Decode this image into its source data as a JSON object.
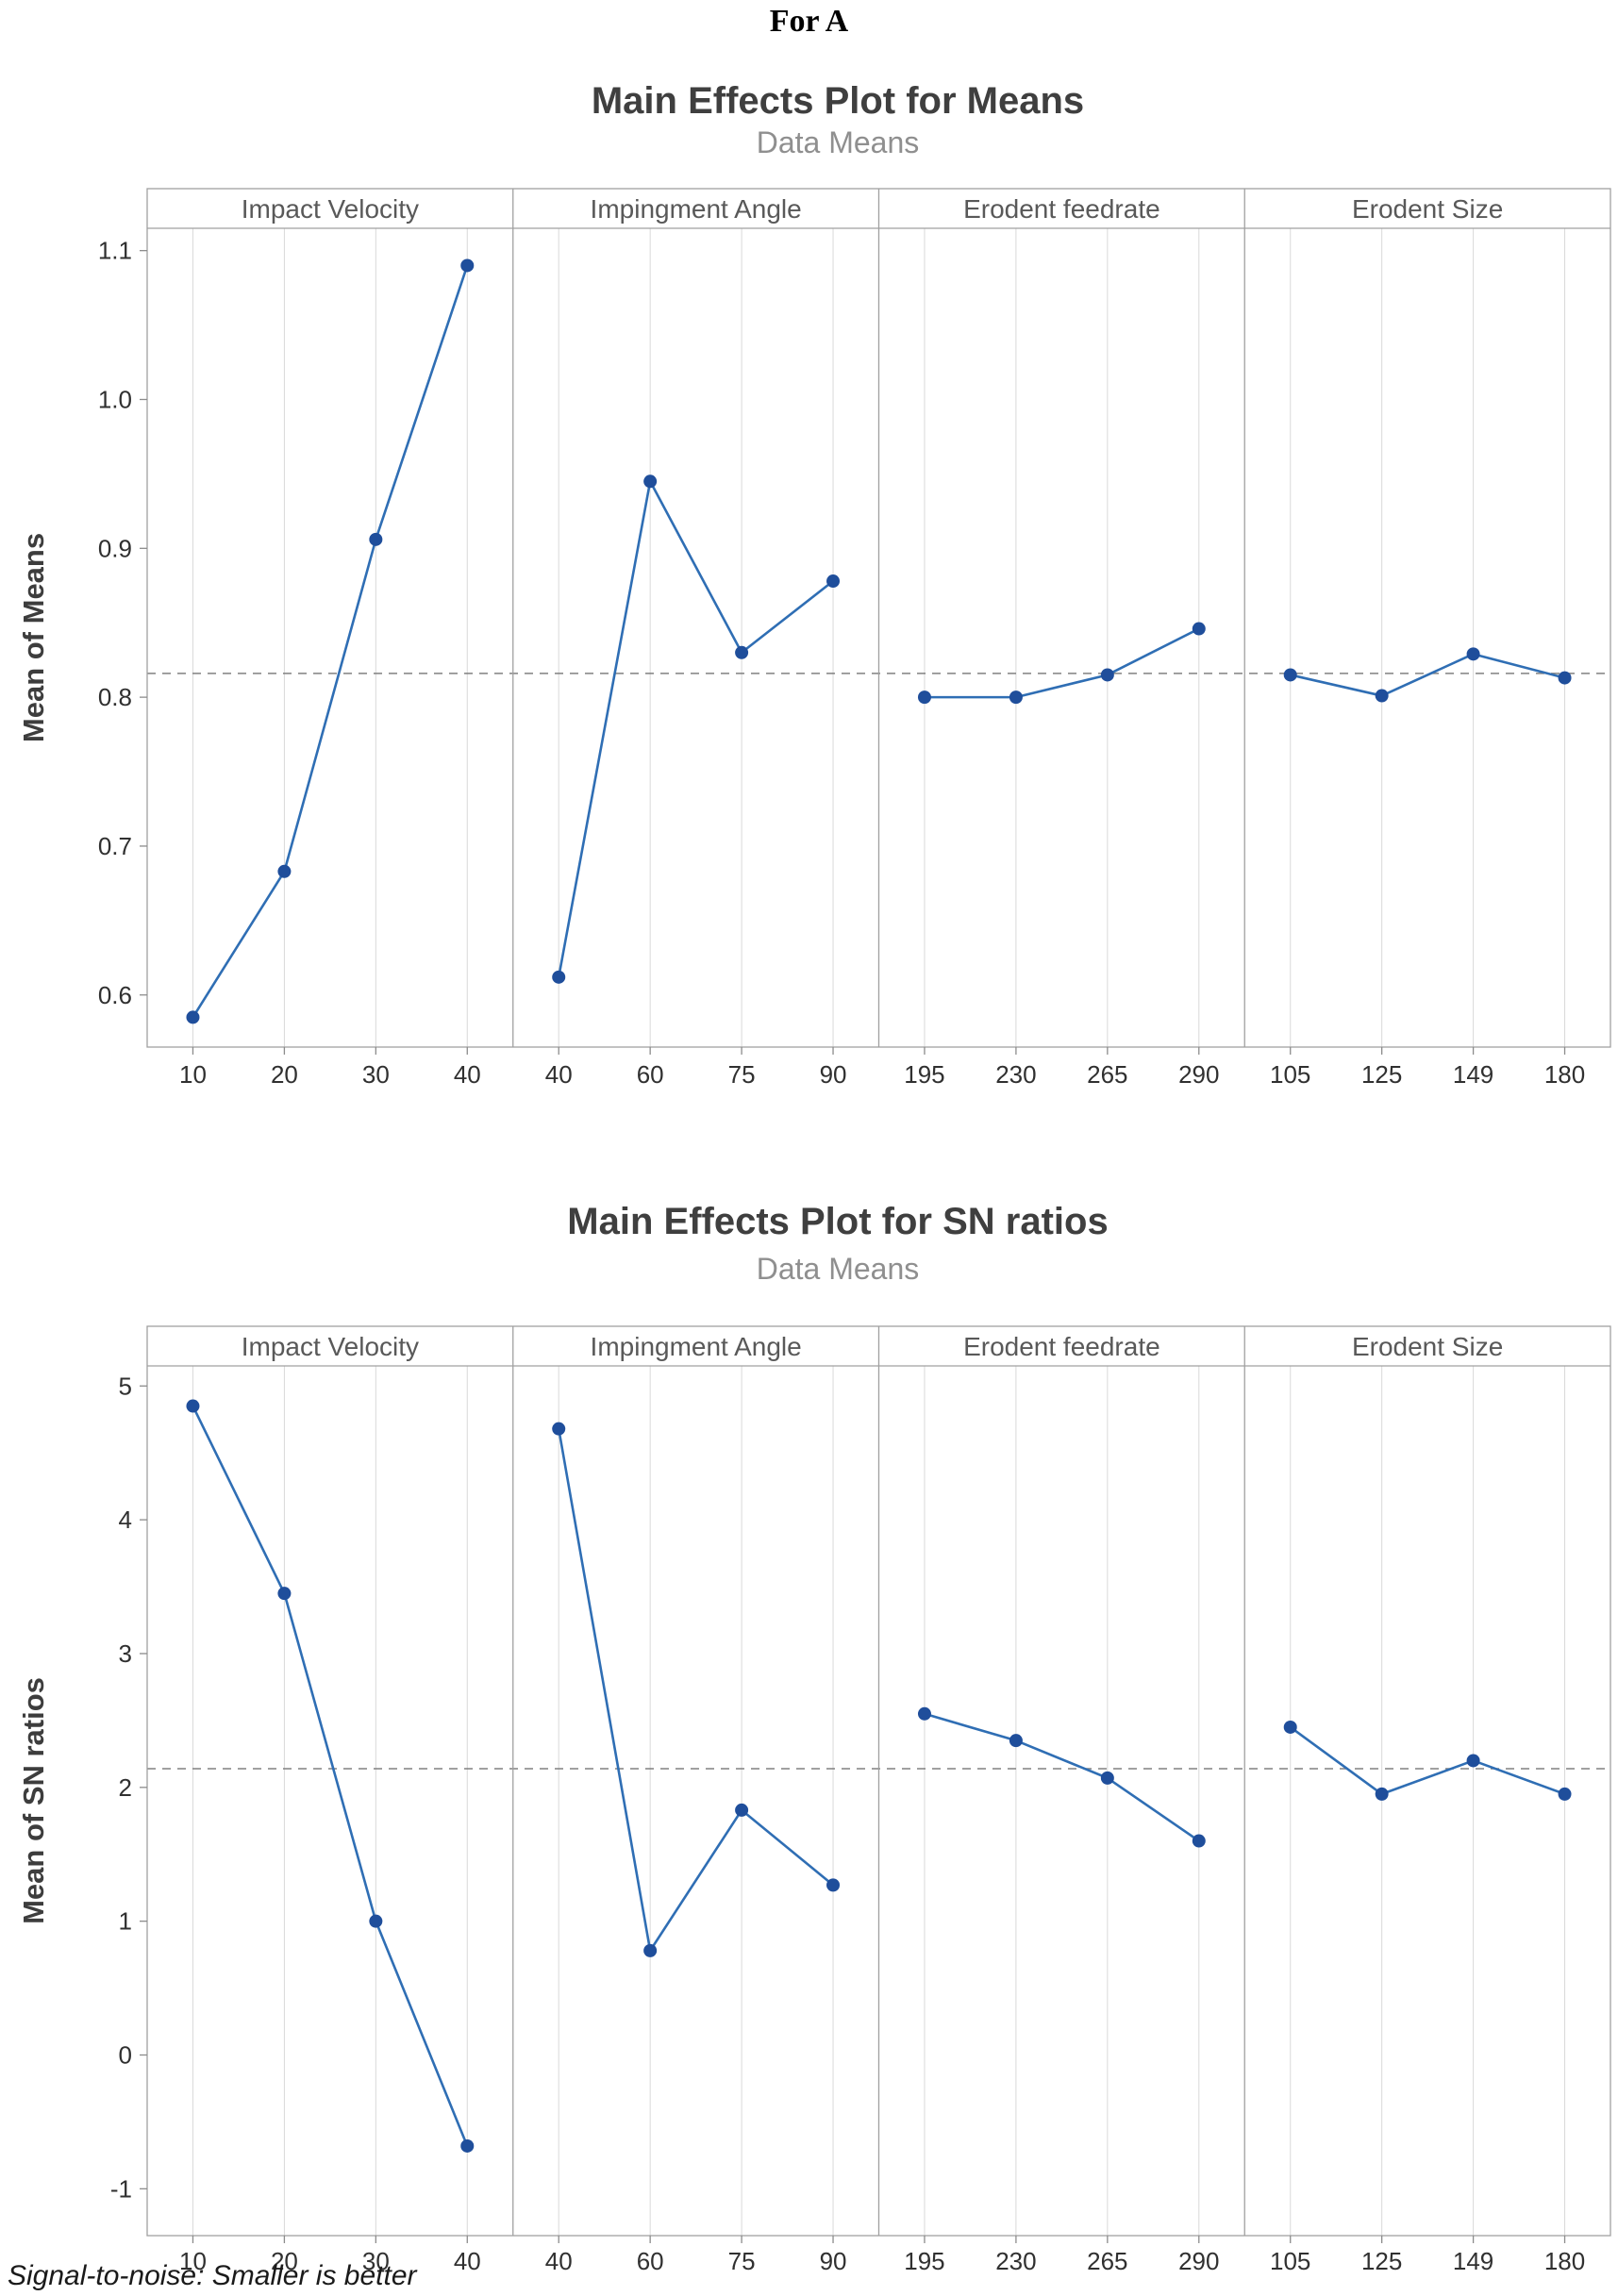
{
  "page": {
    "header": "For A",
    "footer": "Signal-to-noise: Smaller is better"
  },
  "colors": {
    "line": "#2f6eb4",
    "marker": "#1f4e9b",
    "reference_line": "#808080",
    "frame": "#a0a0a0",
    "gridline": "#d9d9d9",
    "axis_tick": "#8c8c8c",
    "title": "#3f3f3f",
    "subtitle": "#8f8f8f",
    "panel_label": "#595959",
    "tick_label": "#303030",
    "axis_label": "#3d3d3d",
    "footer": "#1a1a1a"
  },
  "chart_data": [
    {
      "type": "line",
      "title": "Main Effects Plot for Means",
      "subtitle": "Data Means",
      "ylabel": "Mean of Means",
      "ylim": [
        0.565,
        1.115
      ],
      "ytick_values": [
        1.1,
        1.0,
        0.9,
        0.8,
        0.7,
        0.6
      ],
      "ytick_labels": [
        "1.1",
        "1.0",
        "0.9",
        "0.8",
        "0.7",
        "0.6"
      ],
      "reference_line": 0.816,
      "grid": "vertical-only",
      "legend": "none",
      "panels": [
        {
          "label": "Impact Velocity",
          "categories": [
            "10",
            "20",
            "30",
            "40"
          ],
          "values": [
            0.585,
            0.683,
            0.906,
            1.09
          ]
        },
        {
          "label": "Impingment Angle",
          "categories": [
            "40",
            "60",
            "75",
            "90"
          ],
          "values": [
            0.612,
            0.945,
            0.83,
            0.878
          ]
        },
        {
          "label": "Erodent feedrate",
          "categories": [
            "195",
            "230",
            "265",
            "290"
          ],
          "values": [
            0.8,
            0.8,
            0.815,
            0.846
          ]
        },
        {
          "label": "Erodent Size",
          "categories": [
            "105",
            "125",
            "149",
            "180"
          ],
          "values": [
            0.815,
            0.801,
            0.829,
            0.813
          ]
        }
      ]
    },
    {
      "type": "line",
      "title": "Main Effects Plot for SN ratios",
      "subtitle": "Data Means",
      "ylabel": "Mean of SN ratios",
      "ylim": [
        -1.35,
        5.15
      ],
      "ytick_values": [
        5,
        4,
        3,
        2,
        1,
        0,
        -1
      ],
      "ytick_labels": [
        "5",
        "4",
        "3",
        "2",
        "1",
        "0",
        "-1"
      ],
      "reference_line": 2.14,
      "grid": "vertical-only",
      "legend": "none",
      "panels": [
        {
          "label": "Impact Velocity",
          "categories": [
            "10",
            "20",
            "30",
            "40"
          ],
          "values": [
            4.85,
            3.45,
            1.0,
            -0.68
          ]
        },
        {
          "label": "Impingment Angle",
          "categories": [
            "40",
            "60",
            "75",
            "90"
          ],
          "values": [
            4.68,
            0.78,
            1.83,
            1.27
          ]
        },
        {
          "label": "Erodent feedrate",
          "categories": [
            "195",
            "230",
            "265",
            "290"
          ],
          "values": [
            2.55,
            2.35,
            2.07,
            1.6
          ]
        },
        {
          "label": "Erodent Size",
          "categories": [
            "105",
            "125",
            "149",
            "180"
          ],
          "values": [
            2.45,
            1.95,
            2.2,
            1.95
          ]
        }
      ]
    }
  ]
}
